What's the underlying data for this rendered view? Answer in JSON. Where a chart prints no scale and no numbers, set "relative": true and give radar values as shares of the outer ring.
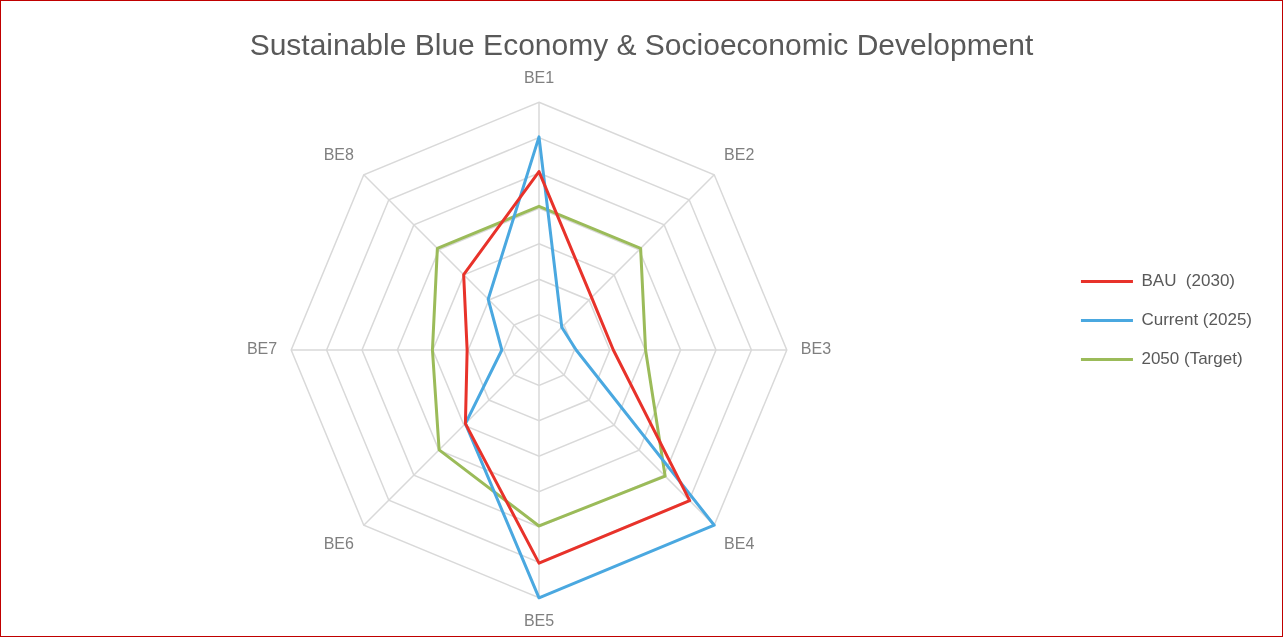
{
  "chart_data": {
    "type": "radar",
    "title": "Sustainable Blue Economy & Socioeconomic Development",
    "categories": [
      "BE1",
      "BE2",
      "BE3",
      "BE4",
      "BE5",
      "BE6",
      "BE7",
      "BE8"
    ],
    "relative": true,
    "grid": true,
    "legend": "right",
    "marker": "none",
    "series": [
      {
        "name": "BAU  (2030)",
        "color": "#e8322a",
        "values": [
          0.72,
          0.3,
          0.3,
          0.86,
          0.86,
          0.42,
          0.29,
          0.43
        ]
      },
      {
        "name": "Current (2025)",
        "color": "#4aa8e0",
        "values": [
          0.86,
          0.13,
          0.15,
          1.0,
          1.0,
          0.42,
          0.15,
          0.29
        ]
      },
      {
        "name": "2050 (Target)",
        "color": "#9bbb59",
        "values": [
          0.58,
          0.58,
          0.43,
          0.72,
          0.71,
          0.57,
          0.43,
          0.58
        ]
      }
    ]
  }
}
